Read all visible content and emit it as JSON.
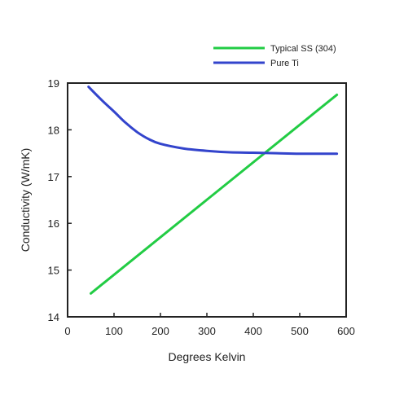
{
  "chart_data": {
    "type": "line",
    "xlabel": "Degrees Kelvin",
    "ylabel": "Conductivity (W/mK)",
    "xlim": [
      0,
      600
    ],
    "ylim": [
      14,
      19
    ],
    "x_ticks": [
      0,
      100,
      200,
      300,
      400,
      500,
      600
    ],
    "y_ticks": [
      14,
      15,
      16,
      17,
      18,
      19
    ],
    "grid": false,
    "legend_position": "top-right, outside plot",
    "series": [
      {
        "name": "Typical SS (304)",
        "color": "#22cc44",
        "x": [
          50,
          580
        ],
        "y": [
          14.5,
          18.75
        ]
      },
      {
        "name": "Pure Ti",
        "color": "#3344cc",
        "x": [
          45,
          75,
          100,
          125,
          150,
          175,
          200,
          250,
          300,
          350,
          400,
          450,
          500,
          580
        ],
        "y": [
          18.92,
          18.62,
          18.39,
          18.15,
          17.95,
          17.8,
          17.7,
          17.6,
          17.55,
          17.52,
          17.51,
          17.5,
          17.49,
          17.49
        ]
      }
    ]
  }
}
